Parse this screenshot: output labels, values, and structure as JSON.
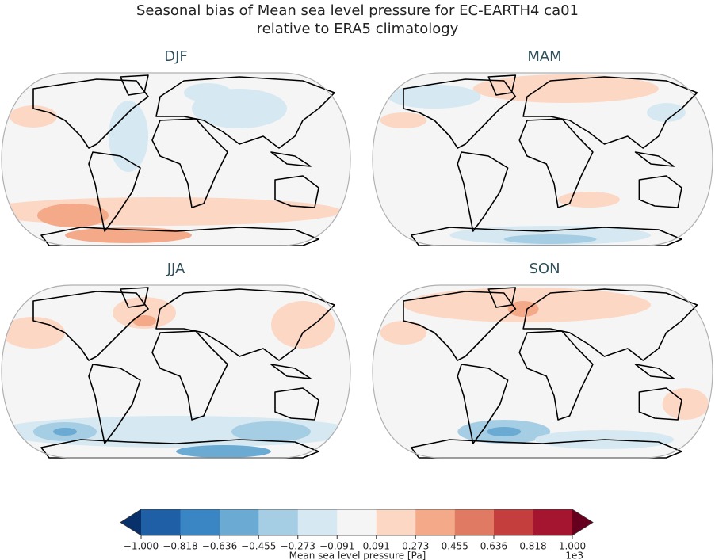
{
  "title_lines": [
    "Seasonal bias of Mean sea level pressure for EC-EARTH4 ca01",
    "relative to ERA5 climatology"
  ],
  "panels": [
    {
      "title": "DJF"
    },
    {
      "title": "MAM"
    },
    {
      "title": "JJA"
    },
    {
      "title": "SON"
    }
  ],
  "colorbar": {
    "label": "Mean sea level pressure [Pa]",
    "offset_label": "1e3",
    "ticks": [
      {
        "value": -1,
        "label": "−1.000"
      },
      {
        "value": -0.818,
        "label": "−0.818"
      },
      {
        "value": -0.636,
        "label": "−0.636"
      },
      {
        "value": -0.455,
        "label": "−0.455"
      },
      {
        "value": -0.273,
        "label": "−0.273"
      },
      {
        "value": -0.091,
        "label": "−0.091"
      },
      {
        "value": 0.091,
        "label": "0.091"
      },
      {
        "value": 0.273,
        "label": "0.273"
      },
      {
        "value": 0.455,
        "label": "0.455"
      },
      {
        "value": 0.636,
        "label": "0.636"
      },
      {
        "value": 0.818,
        "label": "0.818"
      },
      {
        "value": 1,
        "label": "1.000"
      }
    ],
    "colors": [
      "#1f5fa6",
      "#3a85c3",
      "#6aaad3",
      "#a5cde3",
      "#d6e8f1",
      "#f5f5f5",
      "#fbd7c4",
      "#f4a989",
      "#e07a62",
      "#c53e3e",
      "#a5152f"
    ],
    "under_color": "#08306b",
    "over_color": "#67001f"
  }
}
